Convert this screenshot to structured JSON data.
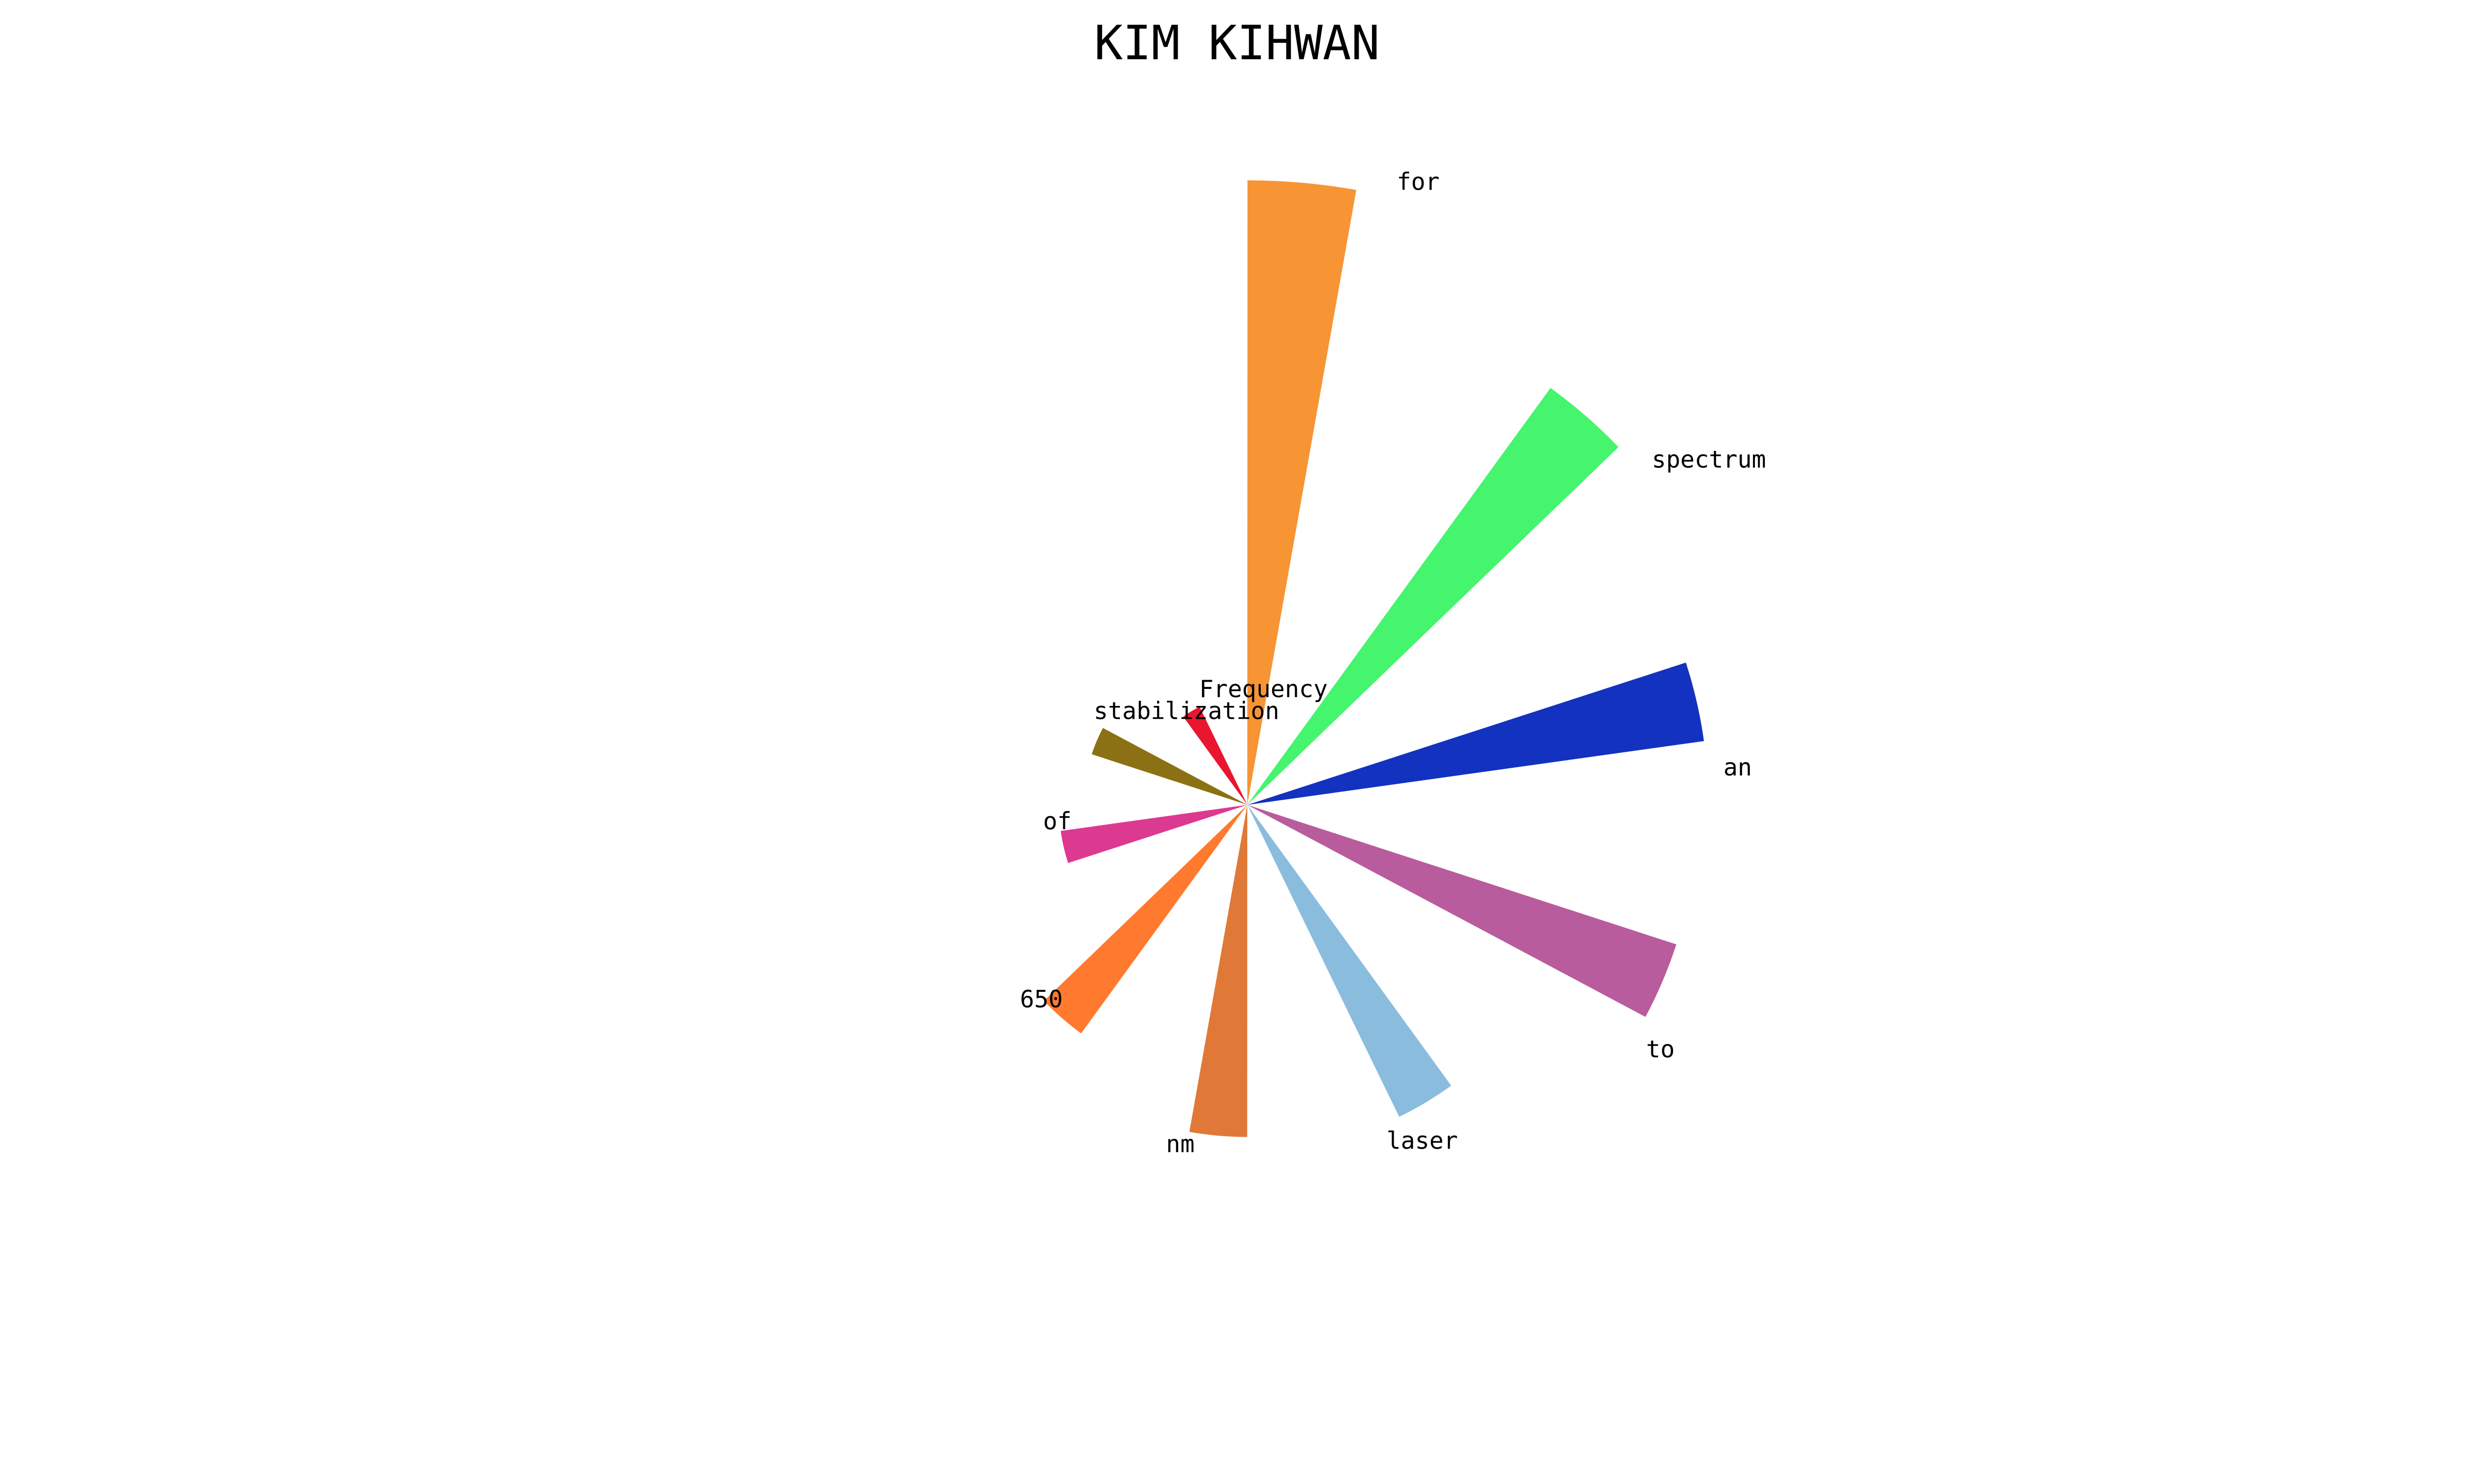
{
  "chart_data": {
    "type": "pie",
    "variant": "nightingale-rose",
    "title": "KIM KIHWAN",
    "categories": [
      "Frequency",
      "stabilization",
      "of",
      "650",
      "nm",
      "laser",
      "to",
      "an",
      "spectrum",
      "for"
    ],
    "values": [
      22,
      33,
      38,
      57,
      67,
      70,
      91,
      93,
      104,
      126
    ],
    "colors": [
      "#e8162f",
      "#8c7114",
      "#dc3991",
      "#ff7a2e",
      "#e07937",
      "#8abcdd",
      "#b95c9d",
      "#1232bf",
      "#44f56d",
      "#f79434"
    ],
    "legend": "none",
    "grid": false
  }
}
